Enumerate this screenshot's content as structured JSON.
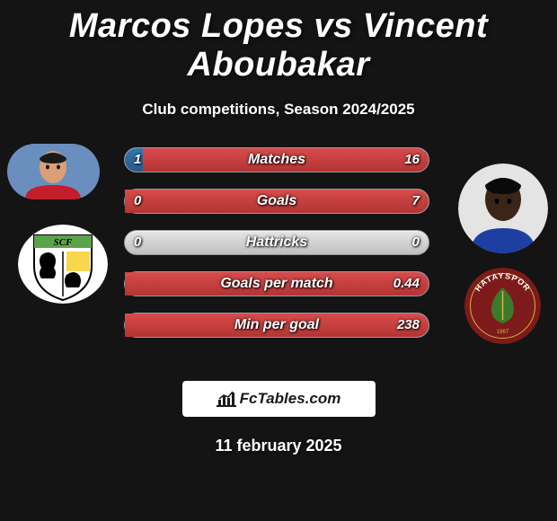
{
  "title": "Marcos Lopes vs Vincent Aboubakar",
  "subtitle": "Club competitions, Season 2024/2025",
  "date": "11 february 2025",
  "brand": "FcTables.com",
  "colors": {
    "bg": "#141414",
    "bar_base_light": "#e6e6e6",
    "bar_base_dark": "#bfbfbf",
    "bar_left_top": "#3276b1",
    "bar_left_bot": "#245a8a",
    "bar_right_top": "#d94b4b",
    "bar_right_bot": "#b23434",
    "text": "#ffffff",
    "brand_box_bg": "#ffffff",
    "brand_text": "#1a1a1a"
  },
  "player1": {
    "name": "Marcos Lopes",
    "club": "SCF",
    "avatar_colors": {
      "bg": "#6a8fbe",
      "shirt": "#c41e2a",
      "skin": "#d9a078"
    },
    "club_colors": {
      "primary": "#ffffff",
      "accent": "#f8d84a",
      "dark": "#000000",
      "band": "#5aa34a"
    }
  },
  "player2": {
    "name": "Vincent Aboubakar",
    "club": "Hatayspor",
    "avatar_colors": {
      "bg": "#e4e4e4",
      "shirt": "#1e3fa1",
      "skin": "#3a2518"
    },
    "club_colors": {
      "primary": "#7d1b1b",
      "accent": "#d6b34a",
      "leaf": "#3a7a2a",
      "band": "#ffffff"
    }
  },
  "stats": [
    {
      "label": "Matches",
      "left_val": "1",
      "right_val": "16",
      "left_pct": 6,
      "right_pct": 94
    },
    {
      "label": "Goals",
      "left_val": "0",
      "right_val": "7",
      "left_pct": 0,
      "right_pct": 100
    },
    {
      "label": "Hattricks",
      "left_val": "0",
      "right_val": "0",
      "left_pct": 0,
      "right_pct": 0
    },
    {
      "label": "Goals per match",
      "left_val": "",
      "right_val": "0.44",
      "left_pct": 0,
      "right_pct": 100
    },
    {
      "label": "Min per goal",
      "left_val": "",
      "right_val": "238",
      "left_pct": 0,
      "right_pct": 100
    }
  ]
}
